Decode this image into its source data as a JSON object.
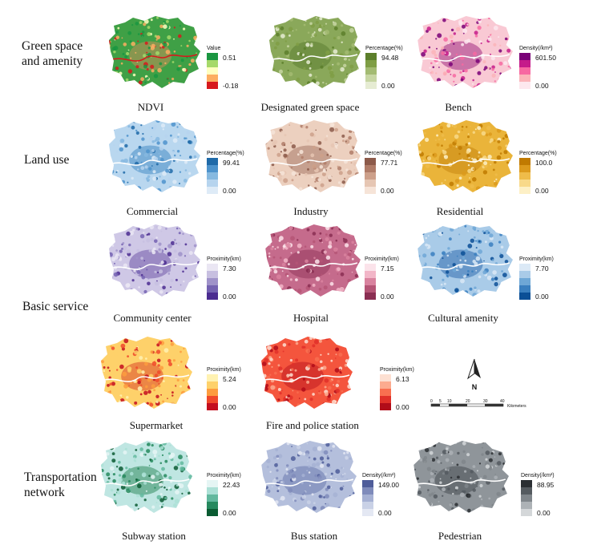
{
  "rows": [
    {
      "label_lines": [
        "Green space",
        "and amenity"
      ]
    },
    {
      "label_lines": [
        "Land use"
      ]
    },
    {
      "label_lines": [
        "Basic service"
      ]
    },
    {
      "label_lines": [
        "Transportation",
        "network"
      ]
    }
  ],
  "panels": [
    {
      "id": "ndvi",
      "caption": "NDVI",
      "legend_title": "Value",
      "max": "0.51",
      "min": "-0.18",
      "colors": [
        "#1a9641",
        "#a6d96a",
        "#ffffbf",
        "#fdae61",
        "#d7191c"
      ],
      "base": "#3fa046",
      "accent": "#e08a5a"
    },
    {
      "id": "green",
      "caption": "Designated green space",
      "legend_title": "Percentage(%)",
      "max": "94.48",
      "min": "0.00",
      "colors": [
        "#5c7f2b",
        "#7f9e45",
        "#a3bb72",
        "#c7d6a3",
        "#e6ecd3"
      ],
      "base": "#8aa85a",
      "accent": "#52762a"
    },
    {
      "id": "bench",
      "caption": "Bench",
      "legend_title": "Density(/km²)",
      "max": "601.50",
      "min": "0.00",
      "colors": [
        "#7a0177",
        "#c51b8a",
        "#f768a1",
        "#fbb4b9",
        "#fde8ee"
      ],
      "base": "#f9c9d4",
      "accent": "#8e0c72"
    },
    {
      "id": "commercial",
      "caption": "Commercial",
      "legend_title": "Percentage(%)",
      "max": "99.41",
      "min": "0.00",
      "colors": [
        "#1f6aa8",
        "#4d93cc",
        "#86b9e0",
        "#b6d4ee",
        "#deebf7"
      ],
      "base": "#b9d7ef",
      "accent": "#2f7dbd"
    },
    {
      "id": "industry",
      "caption": "Industry",
      "legend_title": "Percentage(%)",
      "max": "77.71",
      "min": "0.00",
      "colors": [
        "#8c5a4a",
        "#b07c68",
        "#cda08a",
        "#e6c6b3",
        "#f6e4d8"
      ],
      "base": "#ecd0bf",
      "accent": "#9a6655"
    },
    {
      "id": "residential",
      "caption": "Residential",
      "legend_title": "Percentage(%)",
      "max": "100.0",
      "min": "0.00",
      "colors": [
        "#c07a00",
        "#dc9a1c",
        "#efbc4a",
        "#f8d98a",
        "#fdf0c6"
      ],
      "base": "#eab43a",
      "accent": "#c27d08"
    },
    {
      "id": "community",
      "caption": "Community center",
      "legend_title": "Proximity(km)",
      "max": "7.30",
      "min": "0.00",
      "colors": [
        "#eae6f3",
        "#c7bfe0",
        "#9f92c9",
        "#7462b1",
        "#4b2c91"
      ],
      "base": "#cfc8e6",
      "accent": "#5a3f9c"
    },
    {
      "id": "hospital",
      "caption": "Hospital",
      "legend_title": "Proximity(km)",
      "max": "7.15",
      "min": "0.00",
      "colors": [
        "#fbe3ea",
        "#f2b6c8",
        "#d9839f",
        "#b55576",
        "#8a2e52"
      ],
      "base": "#c56b8c",
      "accent": "#8a2e52"
    },
    {
      "id": "cultural",
      "caption": "Cultural amenity",
      "legend_title": "Proximity(km)",
      "max": "7.70",
      "min": "0.00",
      "colors": [
        "#dbe9f6",
        "#a9cbe8",
        "#6ea7d6",
        "#3a7fbf",
        "#0b4f96"
      ],
      "base": "#a9cbe8",
      "accent": "#1659a4"
    },
    {
      "id": "supermarket",
      "caption": "Supermarket",
      "legend_title": "Proximity(km)",
      "max": "5.24",
      "min": "0.00",
      "colors": [
        "#fff2b2",
        "#fed16a",
        "#fd9c3e",
        "#f0492a",
        "#c40e1e"
      ],
      "base": "#fed16a",
      "accent": "#d42a1a"
    },
    {
      "id": "fire",
      "caption": "Fire and police station",
      "legend_title": "Proximity(km)",
      "max": "6.13",
      "min": "0.00",
      "colors": [
        "#fde0d2",
        "#fcab8f",
        "#f86f50",
        "#e03029",
        "#b10c19"
      ],
      "base": "#f4553d",
      "accent": "#b30e1a"
    },
    {
      "id": "subway",
      "caption": "Subway station",
      "legend_title": "Proximity(km)",
      "max": "22.43",
      "min": "0.00",
      "colors": [
        "#e5f5f4",
        "#ace0d6",
        "#62b89e",
        "#26895e",
        "#0a5b32"
      ],
      "base": "#bfe6e2",
      "accent": "#147a45"
    },
    {
      "id": "bus",
      "caption": "Bus station",
      "legend_title": "Density(/km²)",
      "max": "149.00",
      "min": "0.00",
      "colors": [
        "#4f5d9a",
        "#7f8bbb",
        "#a6b1d4",
        "#c9d1e6",
        "#e4e8f3"
      ],
      "base": "#b4bfdc",
      "accent": "#5a6aa4"
    },
    {
      "id": "pedestrian",
      "caption": "Pedestrian",
      "legend_title": "Density(/km²)",
      "max": "88.95",
      "min": "0.00",
      "colors": [
        "#2b2f33",
        "#555b60",
        "#80868b",
        "#adb2b6",
        "#d4d7d9"
      ],
      "base": "#8f959a",
      "accent": "#3a3f44"
    }
  ],
  "compass": {
    "label": "N"
  },
  "scale": {
    "ticks": [
      "0",
      "5",
      "10",
      "20",
      "30",
      "40"
    ],
    "unit": "Kilometers"
  }
}
